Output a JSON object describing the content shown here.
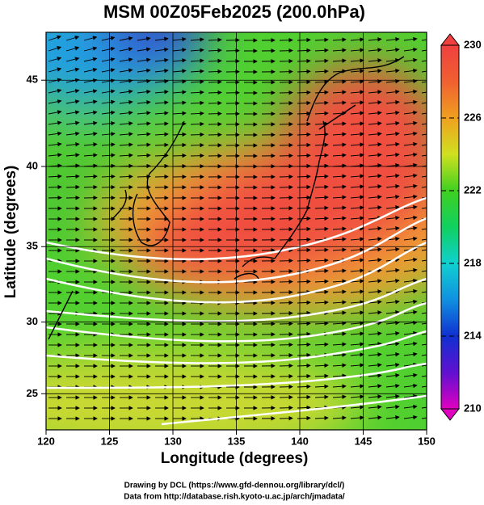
{
  "title": "MSM 00Z05Feb2025 (200.0hPa)",
  "map": {
    "projection": "mercator",
    "x_label": "Longitude (degrees)",
    "y_label": "Latitude  (degrees)",
    "xlim": [
      120,
      150
    ],
    "xticks": [
      120,
      125,
      130,
      135,
      140,
      145,
      150
    ],
    "ylim": [
      22.4,
      47.6
    ],
    "yticks": [
      25,
      30,
      35,
      40,
      45
    ]
  },
  "colorbar": {
    "lim": [
      210,
      230
    ],
    "ticks": [
      210,
      214,
      218,
      222,
      226,
      230
    ],
    "stops": [
      {
        "value": 210,
        "color": "#e000c0"
      },
      {
        "value": 212,
        "color": "#6010d0"
      },
      {
        "value": 214,
        "color": "#1030d0"
      },
      {
        "value": 216,
        "color": "#1090e0"
      },
      {
        "value": 218,
        "color": "#10d0d0"
      },
      {
        "value": 220,
        "color": "#10d060"
      },
      {
        "value": 222,
        "color": "#40d020"
      },
      {
        "value": 224,
        "color": "#d0e020"
      },
      {
        "value": 226,
        "color": "#f0a020"
      },
      {
        "value": 228,
        "color": "#f06030"
      },
      {
        "value": 230,
        "color": "#f04040"
      }
    ]
  },
  "credits": [
    "Drawing by DCL (https://www.gfd-dennou.org/library/dcl/)",
    "Data from http://database.rish.kyoto-u.ac.jp/arch/jmadata/"
  ]
}
